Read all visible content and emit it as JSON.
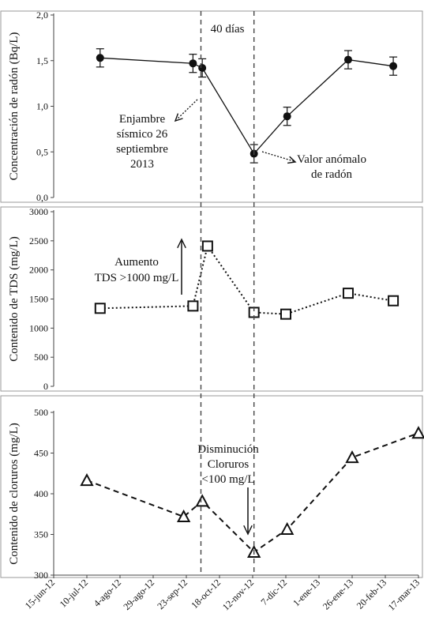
{
  "chart_data": [
    {
      "type": "line",
      "ylabel": "Concentración de radón (Bq/L)",
      "ylim": [
        0,
        2
      ],
      "yticks": [
        "0,0",
        "0,5",
        "1,0",
        "1,5",
        "2,0"
      ],
      "marker": "filled-circle",
      "line_style": "solid",
      "error_bars": true,
      "series": [
        {
          "x": [
            "2012-07-20",
            "2012-09-28",
            "2012-10-05",
            "2012-11-13",
            "2012-12-08",
            "2013-01-23",
            "2013-02-26"
          ],
          "values": [
            1.53,
            1.47,
            1.42,
            0.48,
            0.89,
            1.51,
            1.44
          ],
          "error": [
            0.1,
            0.1,
            0.1,
            0.1,
            0.1,
            0.1,
            0.1
          ]
        }
      ],
      "annotations": [
        {
          "text": [
            "Enjambre",
            "sísmico 26",
            "septiembre",
            "2013"
          ]
        },
        {
          "text": [
            "Valor anómalo",
            "de radón"
          ]
        }
      ],
      "vline_label": "40 días"
    },
    {
      "type": "line",
      "ylabel": "Contenido de TDS (mg/L)",
      "ylim": [
        0,
        3000
      ],
      "yticks": [
        "0",
        "500",
        "1000",
        "1500",
        "2000",
        "2500",
        "3000"
      ],
      "marker": "open-square",
      "line_style": "dotted",
      "series": [
        {
          "x": [
            "2012-07-20",
            "2012-09-28",
            "2012-10-09",
            "2012-11-13",
            "2012-12-07",
            "2013-01-23",
            "2013-02-26"
          ],
          "values": [
            1340,
            1380,
            2410,
            1270,
            1240,
            1600,
            1470
          ]
        }
      ],
      "annotations": [
        {
          "text": [
            "Aumento",
            "TDS >1000 mg/L"
          ]
        }
      ]
    },
    {
      "type": "line",
      "ylabel": "Contenido de cloruros (mg/L)",
      "ylim": [
        300,
        520
      ],
      "yticks": [
        "300",
        "350",
        "400",
        "450",
        "500"
      ],
      "marker": "open-triangle",
      "line_style": "dashed",
      "series": [
        {
          "x": [
            "2012-07-10",
            "2012-09-21",
            "2012-10-05",
            "2012-11-13",
            "2012-12-08",
            "2013-01-26",
            "2013-03-17"
          ],
          "values": [
            428,
            379,
            400,
            331,
            362,
            459,
            492
          ]
        }
      ],
      "annotations": [
        {
          "text": [
            "Disminución",
            "Cloruros",
            "<100 mg/L"
          ]
        }
      ]
    }
  ],
  "x_axis": {
    "ticks": [
      "15-jun-12",
      "10-jul-12",
      "4-ago-12",
      "29-ago-12",
      "23-sep-12",
      "18-oct-12",
      "12-nov-12",
      "7-dic-12",
      "1-ene-13",
      "26-ene-13",
      "20-feb-13",
      "17-mar-13"
    ],
    "range": [
      "2012-06-15",
      "2013-03-17"
    ]
  },
  "event_lines": [
    "2012-10-04",
    "2012-11-13"
  ]
}
